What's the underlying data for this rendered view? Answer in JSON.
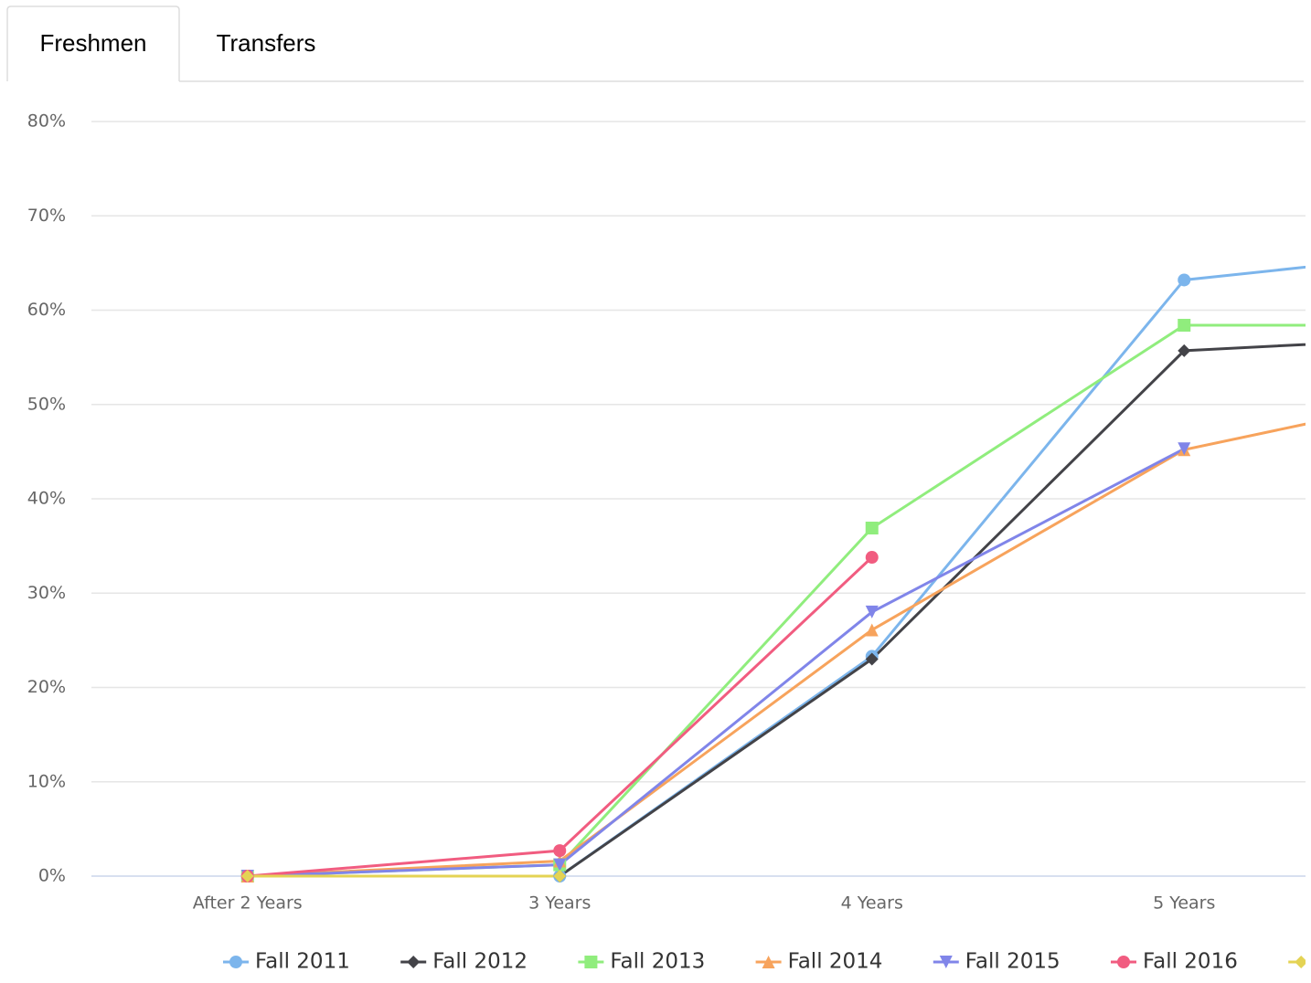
{
  "tabs": [
    "Freshmen",
    "Transfers"
  ],
  "chart_data": {
    "type": "line",
    "categories": [
      "After 2 Years",
      "3 Years",
      "4 Years",
      "5 Years",
      null
    ],
    "series": [
      {
        "name": "Fall 2011",
        "color": "#7cb5ec",
        "marker": "circle",
        "values": [
          0,
          0,
          23.3,
          63.2,
          66.7
        ]
      },
      {
        "name": "Fall 2012",
        "color": "#434348",
        "marker": "diamond",
        "values": [
          0,
          0,
          23.0,
          55.7,
          57.4
        ]
      },
      {
        "name": "Fall 2013",
        "color": "#90ed7d",
        "marker": "square",
        "values": [
          0,
          1.2,
          36.9,
          58.4,
          58.4
        ]
      },
      {
        "name": "Fall 2014",
        "color": "#f7a35c",
        "marker": "triangle",
        "values": [
          0,
          1.6,
          26.1,
          45.2,
          52.2
        ]
      },
      {
        "name": "Fall 2015",
        "color": "#8085e9",
        "marker": "triangle-down",
        "values": [
          0,
          1.2,
          28.0,
          45.3,
          null
        ]
      },
      {
        "name": "Fall 2016",
        "color": "#f15c80",
        "marker": "circle",
        "values": [
          0,
          2.7,
          33.8,
          null,
          null
        ]
      },
      {
        "name": null,
        "color": "#e4d354",
        "marker": "diamond",
        "values": [
          0,
          0,
          null,
          null,
          null
        ]
      }
    ],
    "ylim": [
      0,
      80
    ],
    "yticks": [
      {
        "value": 0,
        "label": "0%"
      },
      {
        "value": 10,
        "label": "10%"
      },
      {
        "value": 20,
        "label": "20%"
      },
      {
        "value": 30,
        "label": "30%"
      },
      {
        "value": 40,
        "label": "40%"
      },
      {
        "value": 50,
        "label": "50%"
      },
      {
        "value": 60,
        "label": "60%"
      },
      {
        "value": 70,
        "label": "70%"
      },
      {
        "value": 80,
        "label": "80%"
      }
    ],
    "grid": true,
    "legend": "bottom"
  }
}
